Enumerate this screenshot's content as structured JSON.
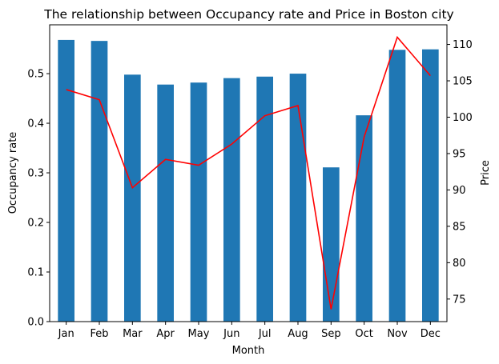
{
  "chart_data": {
    "type": "bar",
    "title": "The relationship between Occupancy rate and Price in Boston city",
    "xlabel": "Month",
    "ylabel": "Occupancy rate",
    "y2label": "Price",
    "categories": [
      "Jan",
      "Feb",
      "Mar",
      "Apr",
      "May",
      "Jun",
      "Jul",
      "Aug",
      "Sep",
      "Oct",
      "Nov",
      "Dec"
    ],
    "series": [
      {
        "type": "bar",
        "axis": "left",
        "color": "#1f77b4",
        "values": [
          0.568,
          0.566,
          0.498,
          0.478,
          0.482,
          0.491,
          0.494,
          0.5,
          0.311,
          0.416,
          0.548,
          0.549
        ]
      },
      {
        "type": "line",
        "axis": "right",
        "color": "#ff0000",
        "values": [
          103.8,
          102.4,
          90.3,
          94.2,
          93.4,
          96.3,
          100.2,
          101.6,
          73.6,
          97.3,
          111.0,
          105.7
        ]
      }
    ],
    "ylim": [
      0,
      0.5985
    ],
    "y2lim": [
      71.9,
      112.7
    ],
    "yticks": [
      0.0,
      0.1,
      0.2,
      0.3,
      0.4,
      0.5
    ],
    "y2ticks": [
      75,
      80,
      85,
      90,
      95,
      100,
      105,
      110
    ],
    "grid": false
  }
}
